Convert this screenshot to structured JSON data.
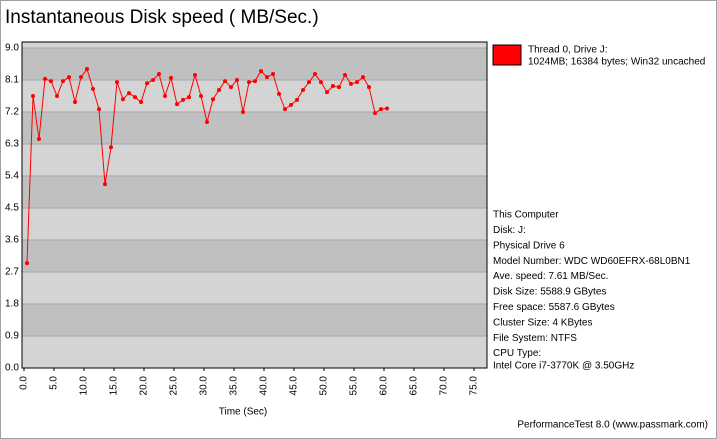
{
  "chart_data": {
    "type": "line",
    "title": "Instantaneous Disk speed ( MB/Sec.)",
    "x_label": "Time (Sec)",
    "x": [
      0.5,
      1.5,
      2.5,
      3.5,
      4.5,
      5.5,
      6.5,
      7.5,
      8.5,
      9.5,
      10.5,
      11.5,
      12.5,
      13.5,
      14.5,
      15.5,
      16.5,
      17.5,
      18.5,
      19.5,
      20.5,
      21.5,
      22.5,
      23.5,
      24.5,
      25.5,
      26.5,
      27.5,
      28.5,
      29.5,
      30.5,
      31.5,
      32.5,
      33.5,
      34.5,
      35.5,
      36.5,
      37.5,
      38.5,
      39.5,
      40.5,
      41.5,
      42.5,
      43.5,
      44.5,
      45.5,
      46.5,
      47.5,
      48.5,
      49.5,
      50.5,
      51.5,
      52.5,
      53.5,
      54.5,
      55.5,
      56.5,
      57.5,
      58.5,
      59.5,
      60.5
    ],
    "series": [
      {
        "name": "Thread 0, Drive J:",
        "detail": "1024MB; 16384 bytes; Win32 uncached",
        "color": "#ff0000",
        "values": [
          2.95,
          7.65,
          6.44,
          8.13,
          8.07,
          7.65,
          8.07,
          8.18,
          7.48,
          8.18,
          8.41,
          7.85,
          7.28,
          5.17,
          6.21,
          8.04,
          7.56,
          7.73,
          7.62,
          7.48,
          8.01,
          8.1,
          8.27,
          7.65,
          8.16,
          7.42,
          7.54,
          7.62,
          8.24,
          7.65,
          6.92,
          7.56,
          7.82,
          8.07,
          7.9,
          8.1,
          7.2,
          8.04,
          8.07,
          8.35,
          8.18,
          8.27,
          7.71,
          7.28,
          7.4,
          7.54,
          7.82,
          8.04,
          8.27,
          8.04,
          7.76,
          7.93,
          7.9,
          8.24,
          7.99,
          8.04,
          8.18,
          7.9,
          7.17,
          7.28,
          7.3
        ]
      }
    ],
    "xlim": [
      0,
      77
    ],
    "ylim": [
      0,
      9
    ],
    "xticks": [
      {
        "value": 0,
        "label": "0.0"
      },
      {
        "value": 5,
        "label": "5.0"
      },
      {
        "value": 10,
        "label": "10.0"
      },
      {
        "value": 15,
        "label": "15.0"
      },
      {
        "value": 20,
        "label": "20.0"
      },
      {
        "value": 25,
        "label": "25.0"
      },
      {
        "value": 30,
        "label": "30.0"
      },
      {
        "value": 35,
        "label": "35.0"
      },
      {
        "value": 40,
        "label": "40.0"
      },
      {
        "value": 45,
        "label": "45.0"
      },
      {
        "value": 50,
        "label": "50.0"
      },
      {
        "value": 55,
        "label": "55.0"
      },
      {
        "value": 60,
        "label": "60.0"
      },
      {
        "value": 65,
        "label": "65.0"
      },
      {
        "value": 70,
        "label": "70.0"
      },
      {
        "value": 75,
        "label": "75.0"
      }
    ],
    "yticks": [
      {
        "value": 0,
        "label": "0.0"
      },
      0.9,
      1.8,
      2.7,
      3.6,
      4.5,
      5.4,
      6.3,
      7.2,
      8.1,
      {
        "value": 9,
        "label": "9.0"
      }
    ],
    "info": [
      "This Computer",
      "Disk: J:",
      "Physical Drive 6",
      "Model Number: WDC WD60EFRX-68L0BN1",
      "Ave. speed: 7.61 MB/Sec.",
      "Disk Size: 5588.9 GBytes",
      "Free space: 5587.6 GBytes",
      "Cluster Size: 4 KBytes",
      "File System: NTFS",
      "CPU Type:",
      "Intel Core i7-3770K @ 3.50GHz"
    ],
    "footer": "PerformanceTest 8.0 (www.passmark.com)"
  }
}
